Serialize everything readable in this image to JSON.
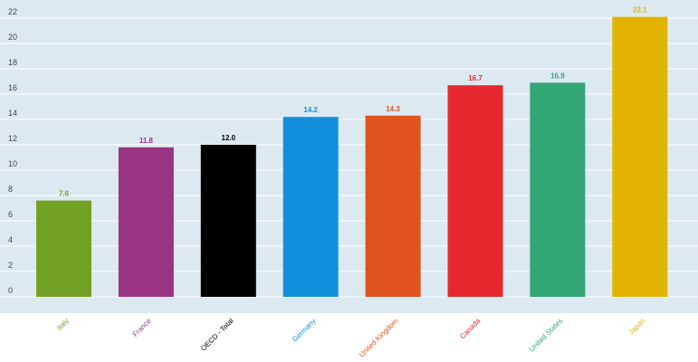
{
  "chart_data": {
    "type": "bar",
    "title": "",
    "xlabel": "",
    "ylabel": "",
    "ylim": [
      0,
      22.5
    ],
    "yticks": [
      0,
      2,
      4,
      6,
      8,
      10,
      12,
      14,
      16,
      18,
      20,
      22
    ],
    "grid": true,
    "background": "#dde9f1",
    "grid_color": "#ffffff",
    "categories": [
      "Italy",
      "France",
      "OECD - Total",
      "Germany",
      "United Kingdom",
      "Canada",
      "United States",
      "Japan"
    ],
    "values": [
      7.6,
      11.8,
      12.0,
      14.2,
      14.3,
      16.7,
      16.9,
      22.1
    ],
    "value_labels": [
      "7.6",
      "11.8",
      "12.0",
      "14.2",
      "14.3",
      "16.7",
      "16.9",
      "22.1"
    ],
    "colors": [
      "#73a125",
      "#993583",
      "#000000",
      "#118fdb",
      "#e0531f",
      "#e8282f",
      "#32a674",
      "#e1b400"
    ]
  }
}
